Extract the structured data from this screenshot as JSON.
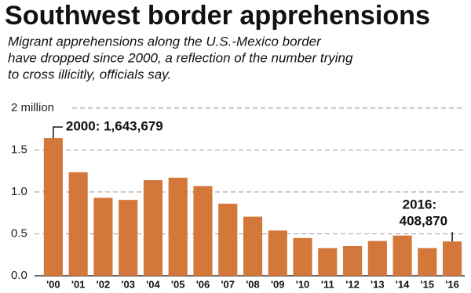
{
  "chart_data": {
    "type": "bar",
    "title": "Southwest border apprehensions",
    "subtitle": [
      "Migrant apprehensions along the U.S.-Mexico border",
      "have dropped since 2000, a reflection of the number trying",
      "to cross illicitly, officials say."
    ],
    "categories": [
      "'00",
      "'01",
      "'02",
      "'03",
      "'04",
      "'05",
      "'06",
      "'07",
      "'08",
      "'09",
      "'10",
      "'11",
      "'12",
      "'13",
      "'14",
      "'15",
      "'16"
    ],
    "values": [
      1.643679,
      1.235,
      0.93,
      0.905,
      1.14,
      1.17,
      1.07,
      0.86,
      0.705,
      0.54,
      0.45,
      0.33,
      0.355,
      0.415,
      0.48,
      0.33,
      0.40887
    ],
    "value_labels": [
      "2000: 1,643,679",
      null,
      null,
      null,
      null,
      null,
      null,
      null,
      null,
      null,
      null,
      null,
      null,
      null,
      null,
      null,
      "2016: 408,870"
    ],
    "color": "#d4773a",
    "ylim": [
      0,
      2
    ],
    "yticks": [
      {
        "value": 0,
        "label": "0.0"
      },
      0.5,
      {
        "value": 1,
        "label": "1.0"
      },
      1.5,
      {
        "value": 2,
        "label": "2 million"
      }
    ],
    "grid": true
  }
}
